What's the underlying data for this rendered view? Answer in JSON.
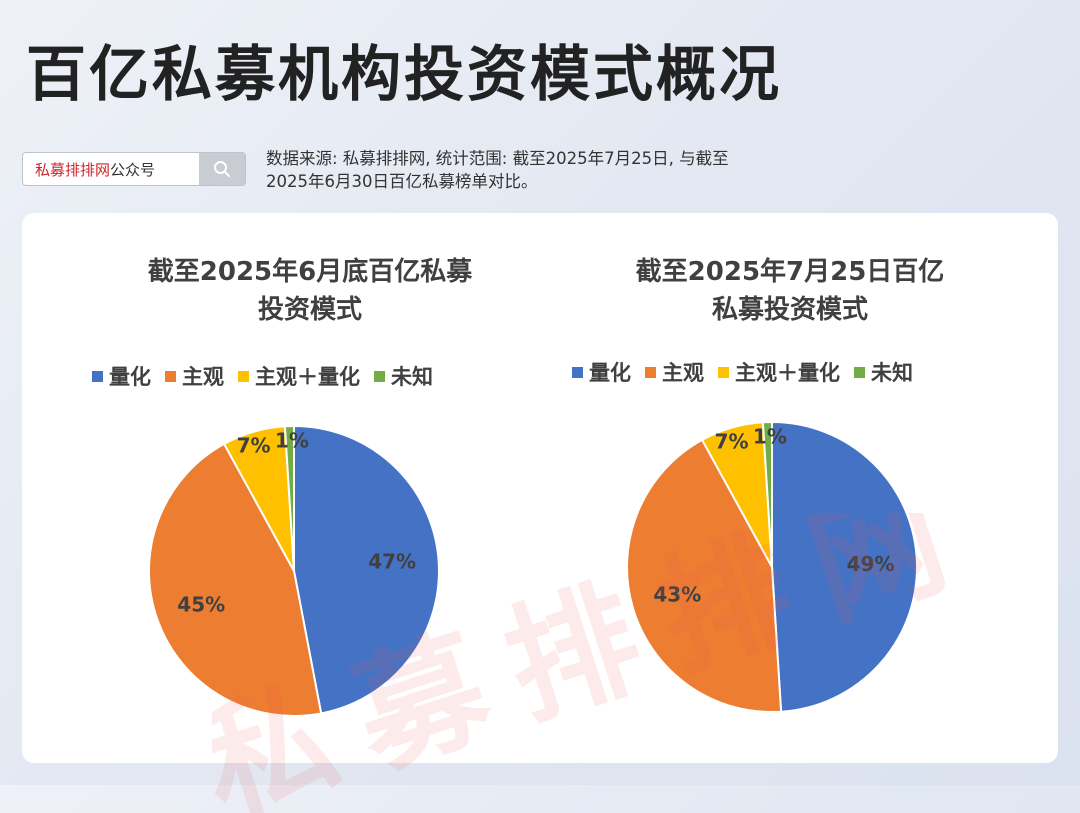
{
  "header": {
    "title": "百亿私募机构投资模式概况",
    "search_brand": "私募排排网",
    "search_suffix": "公众号",
    "source_line1": "数据来源: 私募排排网, 统计范围: 截至2025年7月25日, 与截至",
    "source_line2": "2025年6月30日百亿私募榜单对比。"
  },
  "watermark": "私募排排网",
  "colors": {
    "量化": "#4472c4",
    "主观": "#ed7d31",
    "主观+量化": "#ffc000",
    "未知": "#70ad47"
  },
  "chart_data": [
    {
      "type": "pie",
      "title_line1": "截至2025年6月底百亿私募",
      "title_line2": "投资模式",
      "legend": [
        "量化",
        "主观",
        "主观＋量化",
        "未知"
      ],
      "categories": [
        "量化",
        "主观",
        "主观+量化",
        "未知"
      ],
      "values": [
        47,
        45,
        7,
        1
      ],
      "labels": [
        "47%",
        "45%",
        "7%",
        "1%"
      ]
    },
    {
      "type": "pie",
      "title_line1": "截至2025年7月25日百亿",
      "title_line2": "私募投资模式",
      "legend": [
        "量化",
        "主观",
        "主观＋量化",
        "未知"
      ],
      "categories": [
        "量化",
        "主观",
        "主观+量化",
        "未知"
      ],
      "values": [
        49,
        43,
        7,
        1
      ],
      "labels": [
        "49%",
        "43%",
        "7%",
        "1%"
      ]
    }
  ]
}
